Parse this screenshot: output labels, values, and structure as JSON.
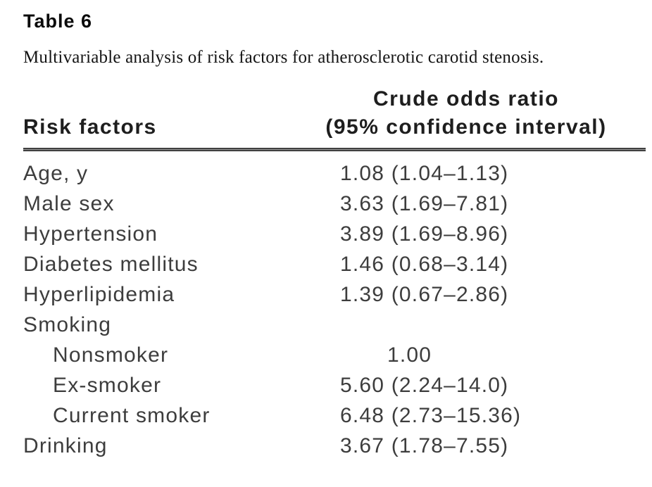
{
  "title": "Table 6",
  "caption": "Multivariable analysis of risk factors for atherosclerotic carotid stenosis.",
  "colors": {
    "page_background": "#ffffff",
    "body_text": "#3d3d3d",
    "heading_text": "#1e1e1e",
    "rule": "#3f3f3f"
  },
  "table": {
    "col_risk_factors": "Risk factors",
    "col_odds_line1": "Crude odds ratio",
    "col_odds_line2": "(95% confidence interval)",
    "rows": [
      {
        "label": "Age, y",
        "value": "1.08 (1.04–1.13)"
      },
      {
        "label": "Male sex",
        "value": "3.63 (1.69–7.81)"
      },
      {
        "label": "Hypertension",
        "value": "3.89 (1.69–8.96)"
      },
      {
        "label": "Diabetes mellitus",
        "value": "1.46 (0.68–3.14)"
      },
      {
        "label": "Hyperlipidemia",
        "value": "1.39 (0.67–2.86)"
      },
      {
        "label": "Smoking",
        "value": ""
      },
      {
        "label": "Nonsmoker",
        "value": "1.00"
      },
      {
        "label": "Ex-smoker",
        "value": "5.60 (2.24–14.0)"
      },
      {
        "label": "Current smoker",
        "value": "6.48 (2.73–15.36)"
      },
      {
        "label": "Drinking",
        "value": "3.67 (1.78–7.55)"
      }
    ]
  },
  "chart_data": {
    "type": "table",
    "title": "Table 6. Multivariable analysis of risk factors for atherosclerotic carotid stenosis.",
    "columns": [
      "Risk factors",
      "Crude odds ratio (95% confidence interval)"
    ],
    "rows": [
      [
        "Age, y",
        "1.08 (1.04–1.13)"
      ],
      [
        "Male sex",
        "3.63 (1.69–7.81)"
      ],
      [
        "Hypertension",
        "3.89 (1.69–8.96)"
      ],
      [
        "Diabetes mellitus",
        "1.46 (0.68–3.14)"
      ],
      [
        "Hyperlipidemia",
        "1.39 (0.67–2.86)"
      ],
      [
        "Smoking",
        ""
      ],
      [
        "Nonsmoker",
        "1.00"
      ],
      [
        "Ex-smoker",
        "5.60 (2.24–14.0)"
      ],
      [
        "Current smoker",
        "6.48 (2.73–15.36)"
      ],
      [
        "Drinking",
        "3.67 (1.78–7.55)"
      ]
    ]
  }
}
